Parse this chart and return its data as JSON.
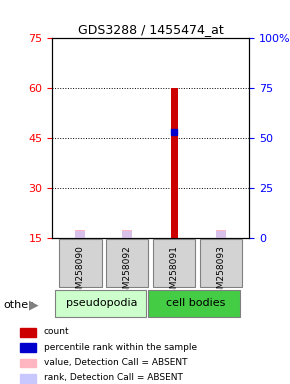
{
  "title": "GDS3288 / 1455474_at",
  "samples": [
    "GSM258090",
    "GSM258092",
    "GSM258091",
    "GSM258093"
  ],
  "groups": [
    "pseudopodia",
    "pseudopodia",
    "cell bodies",
    "cell bodies"
  ],
  "group_colors": [
    "#90EE90",
    "#90EE90",
    "#00CC00",
    "#00CC00"
  ],
  "ylim_left": [
    15,
    75
  ],
  "ylim_right": [
    0,
    100
  ],
  "yticks_left": [
    15,
    30,
    45,
    60,
    75
  ],
  "yticks_right": [
    0,
    25,
    50,
    75,
    100
  ],
  "count_values": [
    null,
    null,
    60,
    null
  ],
  "rank_values": [
    null,
    null,
    47,
    null
  ],
  "absent_value_heights": [
    17.5,
    17.5,
    null,
    17.5
  ],
  "absent_rank_heights": [
    17.2,
    17.2,
    null,
    17.2
  ],
  "count_color": "#CC0000",
  "rank_color": "#0000CC",
  "absent_value_color": "#FFB6C1",
  "absent_rank_color": "#C8C8FF",
  "bar_width": 0.35,
  "sample_box_color": "#D3D3D3",
  "group1_label": "pseudopodia",
  "group2_label": "cell bodies",
  "group1_bg": "#CCFFCC",
  "group2_bg": "#44CC44",
  "legend_items": [
    {
      "color": "#CC0000",
      "label": "count"
    },
    {
      "color": "#0000CC",
      "label": "percentile rank within the sample"
    },
    {
      "color": "#FFB6C1",
      "label": "value, Detection Call = ABSENT"
    },
    {
      "color": "#C8C8FF",
      "label": "rank, Detection Call = ABSENT"
    }
  ]
}
